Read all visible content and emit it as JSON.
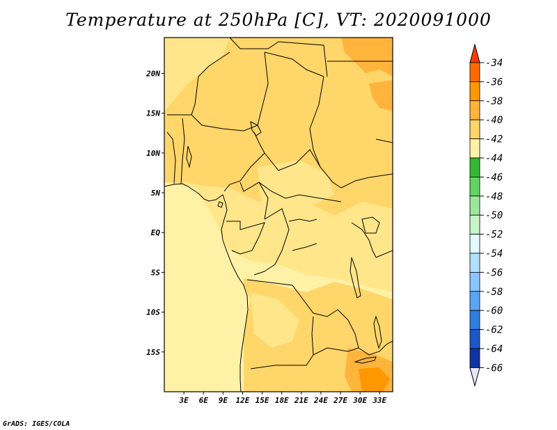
{
  "title": "Temperature at 250hPa [C], VT: 2020091000",
  "credit": "GrADS: IGES/COLA",
  "map": {
    "lat_labels": [
      "20N",
      "15N",
      "10N",
      "5N",
      "EQ",
      "5S",
      "10S",
      "15S"
    ],
    "lon_labels": [
      "3E",
      "6E",
      "9E",
      "12E",
      "15E",
      "18E",
      "21E",
      "24E",
      "27E",
      "30E",
      "33E"
    ],
    "lon_range": [
      0,
      35
    ],
    "lat_range": [
      -20,
      24.5
    ]
  },
  "colorbar": {
    "labels": [
      "-34",
      "-36",
      "-38",
      "-40",
      "-42",
      "-44",
      "-46",
      "-48",
      "-50",
      "-52",
      "-54",
      "-56",
      "-58",
      "-60",
      "-62",
      "-64",
      "-66"
    ],
    "colors": [
      "#ff3b00",
      "#ff6a00",
      "#ff9800",
      "#ffb43c",
      "#ffd66a",
      "#fff2a6",
      "#34b835",
      "#63d463",
      "#9be89b",
      "#c8f5c8",
      "#e3fbff",
      "#b2e0ff",
      "#88c6ff",
      "#5aa6f0",
      "#2e7ee0",
      "#1a58c8",
      "#0f34a2",
      "#0a1870"
    ]
  },
  "field_colors": {
    "base": "#fff2a6",
    "light": "#ffe68a",
    "mid": "#ffd66a",
    "warm": "#ffb43c"
  }
}
